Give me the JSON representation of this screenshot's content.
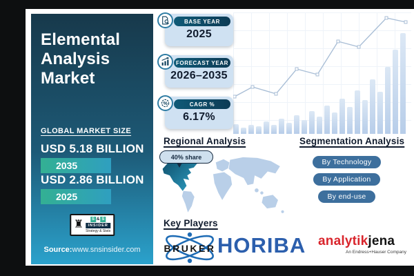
{
  "left_panel": {
    "title": "Elemental\nAnalysis\nMarket",
    "section_label": "GLOBAL MARKET SIZE",
    "market_values": [
      {
        "value": "USD 5.18 BILLION",
        "year": "2035"
      },
      {
        "value": "USD 2.86 BILLION",
        "year": "2025"
      }
    ],
    "logo": {
      "cells": [
        "S",
        "&",
        "S"
      ],
      "name": "INSIDER",
      "tagline": "Strategy & Stats"
    },
    "source_label": "Source:",
    "source_value": "www.snsinsider.com"
  },
  "stat_chips": [
    {
      "label": "BASE YEAR",
      "value": "2025",
      "icon": "document-search-icon"
    },
    {
      "label": "FORECAST YEAR",
      "value": "2026–2035",
      "icon": "growth-chart-icon"
    },
    {
      "label": "CAGR %",
      "value": "6.17%",
      "icon": "percentage-badge-icon"
    }
  ],
  "regional": {
    "heading": "Regional Analysis",
    "share_callout": "40% share",
    "highlighted_region": "North America"
  },
  "segmentation": {
    "heading": "Segmentation Analysis",
    "buttons": [
      "By Technology",
      "By Application",
      "By end-use"
    ]
  },
  "key_players": {
    "heading": "Key Players",
    "bruker": "BRUKER",
    "horiba": "HORIBA",
    "analytik": "analytik",
    "jena": "jena",
    "analytik_sub": "An Endress+Hauser Company"
  },
  "decorative_chart": {
    "type": "bar",
    "bars": [
      14,
      9,
      13,
      11,
      18,
      13,
      22,
      16,
      27,
      20,
      33,
      25,
      41,
      31,
      51,
      39,
      63,
      49,
      79,
      61,
      97,
      122,
      146
    ],
    "line_points": [
      [
        2,
        122
      ],
      [
        28,
        108
      ],
      [
        62,
        118
      ],
      [
        92,
        82
      ],
      [
        122,
        90
      ],
      [
        152,
        42
      ],
      [
        182,
        50
      ],
      [
        222,
        8
      ],
      [
        250,
        14
      ]
    ]
  },
  "colors": {
    "frame": "#0d0f10",
    "panel-top": "#17394b",
    "panel-mid": "#1d5a77",
    "panel-bottom": "#2ba2cc",
    "badge-from": "#33b093",
    "badge-to": "#2f9fc0",
    "chip-body": "#cfe1f2",
    "pill-from": "#0f5a77",
    "pill-to": "#0d3b55",
    "ring": "#2e7ca3",
    "ink": "#101b2d",
    "btn": "#3d6f9d",
    "map": "#b9cfe8",
    "map-hl-from": "#0f4f6b",
    "map-hl-to": "#2e9ec2",
    "horiba": "#2c5fad",
    "bruker-blue": "#1f6cb5",
    "red": "#d9252c",
    "bar-from": "#dce8f5",
    "bar-to": "#b7cde9",
    "line": "#a9bed6"
  }
}
